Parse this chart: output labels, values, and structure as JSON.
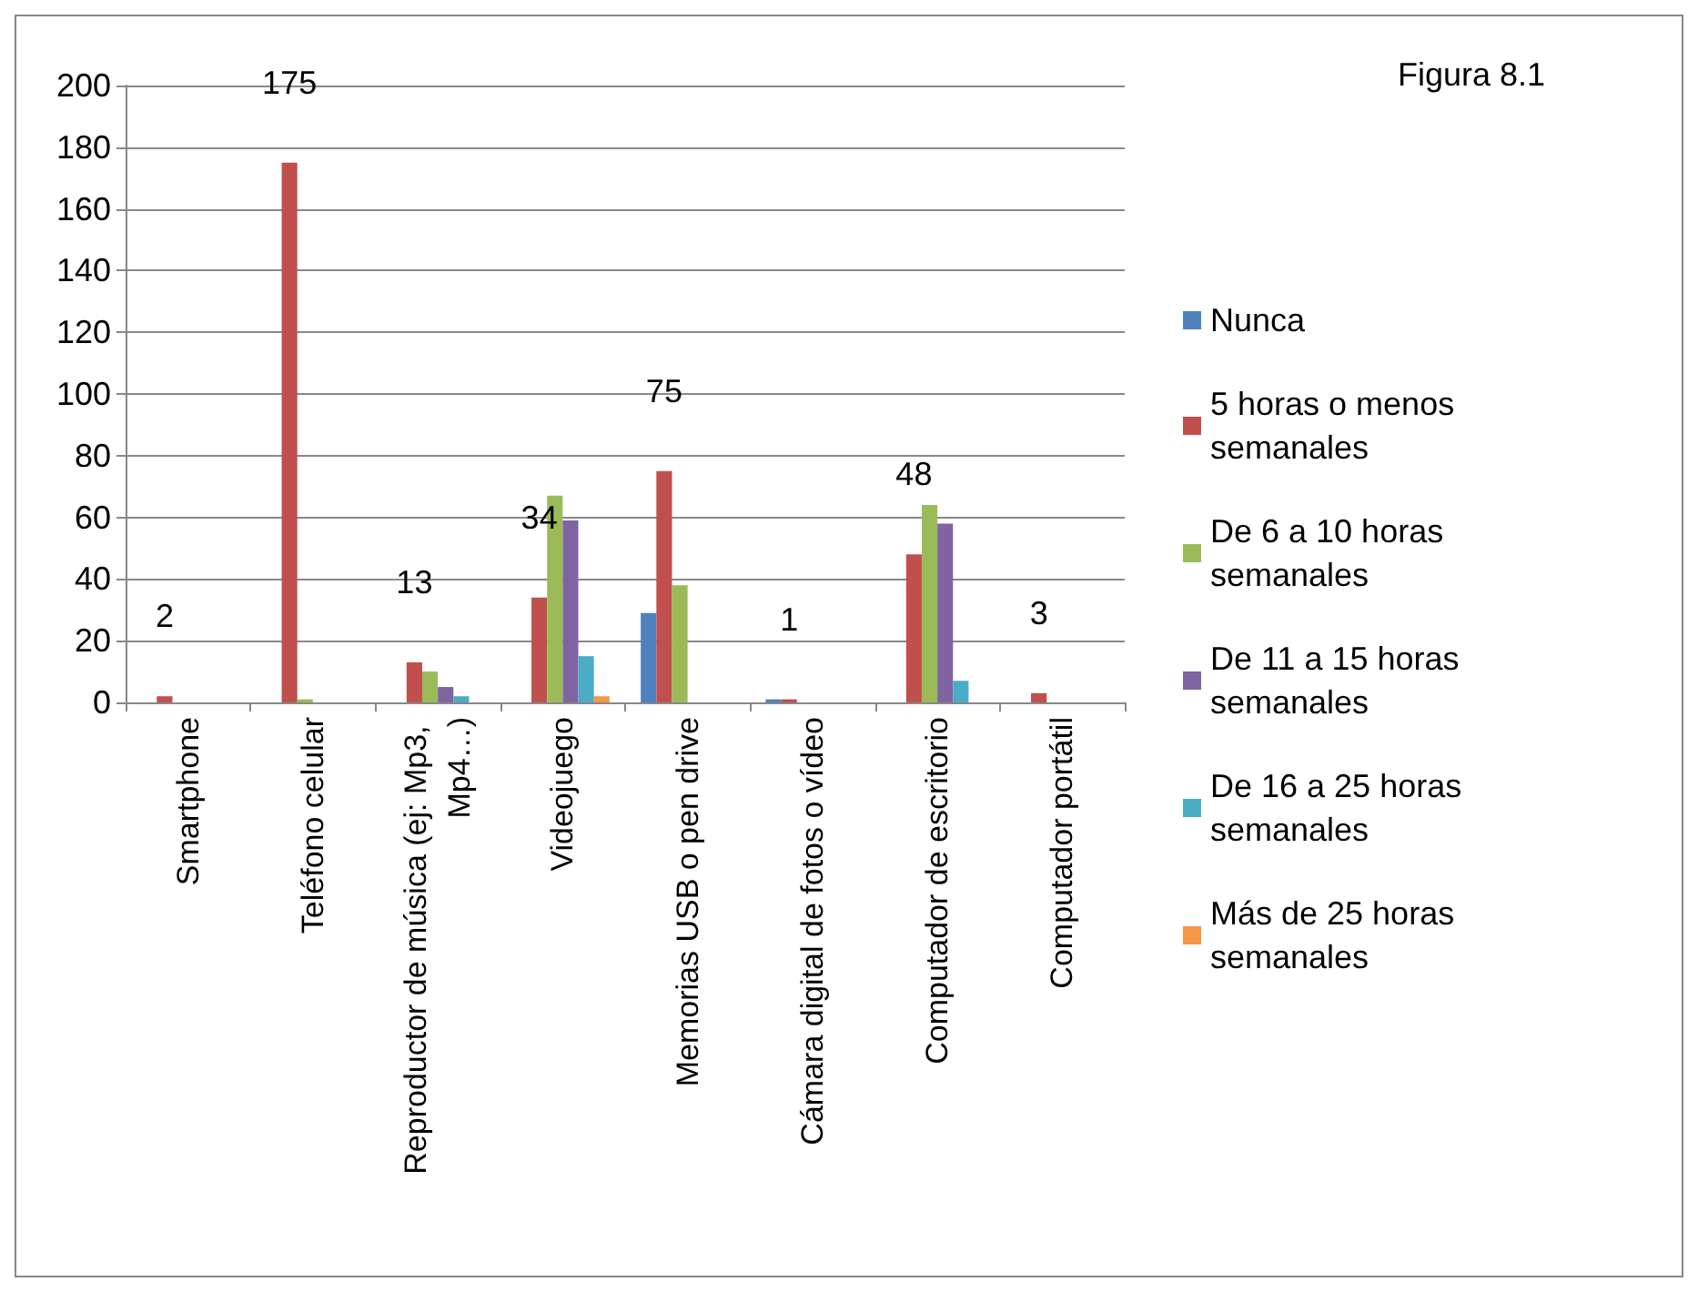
{
  "chart_data": {
    "type": "bar",
    "title": "Figura 8.1",
    "categories": [
      "Smartphone",
      "Teléfono celular",
      "Reproductor de música (ej: Mp3, Mp4…)",
      "Videojuego",
      "Memorias USB o pen drive",
      "Cámara digital de fotos o vídeo",
      "Computador de escritorio",
      "Computador portátil"
    ],
    "series": [
      {
        "name": "Nunca",
        "color": "#4f81bd",
        "values": [
          0,
          0,
          0,
          0,
          29,
          1,
          0,
          0
        ]
      },
      {
        "name": "5 horas o menos semanales",
        "color": "#c0504d",
        "values": [
          2,
          175,
          13,
          34,
          75,
          1,
          48,
          3
        ],
        "value_labels": [
          "2",
          "175",
          "13",
          "34",
          "75",
          "1",
          "48",
          "3"
        ]
      },
      {
        "name": "De 6 a 10 horas semanales",
        "color": "#9bbb59",
        "values": [
          0,
          1,
          10,
          67,
          38,
          0,
          64,
          0
        ]
      },
      {
        "name": "De 11 a 15 horas semanales",
        "color": "#8064a2",
        "values": [
          0,
          0,
          5,
          59,
          0,
          0,
          58,
          0
        ]
      },
      {
        "name": "De 16 a 25 horas semanales",
        "color": "#4bacc6",
        "values": [
          0,
          0,
          2,
          15,
          0,
          0,
          7,
          0
        ]
      },
      {
        "name": "Más de 25 horas semanales",
        "color": "#f79646",
        "values": [
          0,
          0,
          0,
          2,
          0,
          0,
          0,
          0
        ]
      }
    ],
    "ylim": [
      0,
      200
    ],
    "yticks": [
      0,
      20,
      40,
      60,
      80,
      100,
      120,
      140,
      160,
      180,
      200
    ],
    "grid": "y",
    "legend": "right"
  }
}
